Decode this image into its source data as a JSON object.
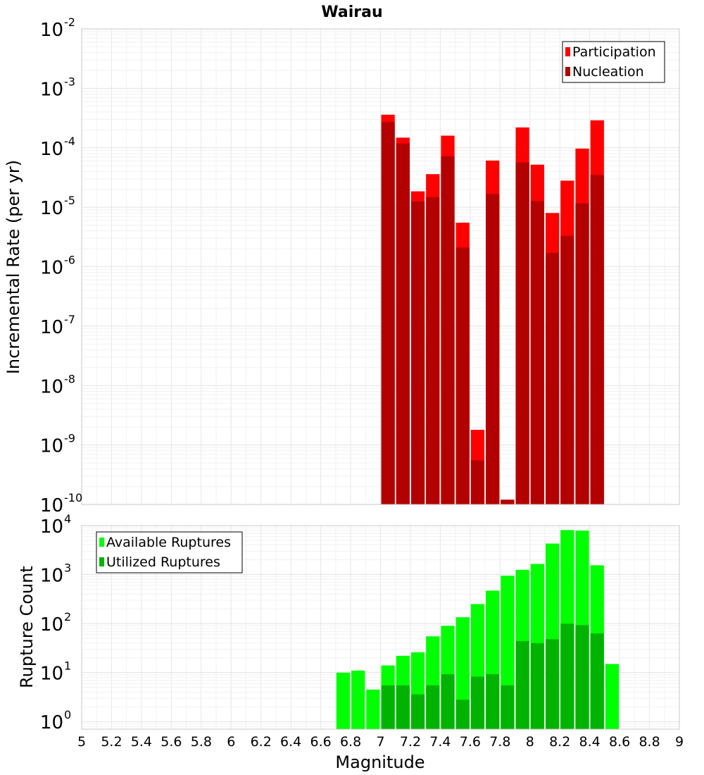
{
  "chart_data": [
    {
      "type": "bar",
      "title": "Wairau",
      "ylabel": "Incremental Rate (per yr)",
      "xlabel": "",
      "y_scale": "log",
      "xlim": [
        5,
        9
      ],
      "ylim": [
        1e-10,
        0.01
      ],
      "y_ticks": [
        {
          "base": "10",
          "exp": "-2",
          "value": 0.01
        },
        {
          "base": "10",
          "exp": "-3",
          "value": 0.001
        },
        {
          "base": "10",
          "exp": "-4",
          "value": 0.0001
        },
        {
          "base": "10",
          "exp": "-5",
          "value": 1e-05
        },
        {
          "base": "10",
          "exp": "-6",
          "value": 1e-06
        },
        {
          "base": "10",
          "exp": "-7",
          "value": 1e-07
        },
        {
          "base": "10",
          "exp": "-8",
          "value": 1e-08
        },
        {
          "base": "10",
          "exp": "-9",
          "value": 1e-09
        },
        {
          "base": "10",
          "exp": "-10",
          "value": 1e-10
        }
      ],
      "legend_position": "top-right",
      "x": [
        7.05,
        7.15,
        7.25,
        7.35,
        7.45,
        7.55,
        7.65,
        7.75,
        7.85,
        7.95,
        8.05,
        8.15,
        8.25,
        8.35,
        8.45
      ],
      "bar_width": 0.1,
      "series": [
        {
          "name": "Participation",
          "color": "#ff0000",
          "values": [
            0.00036,
            0.000148,
            1.85e-05,
            3.6e-05,
            0.00016,
            5.5e-06,
            1.8e-09,
            6.1e-05,
            1.2e-10,
            0.00022,
            5.2e-05,
            8e-06,
            2.8e-05,
            9.7e-05,
            0.00029
          ]
        },
        {
          "name": "Nucleation",
          "color": "#b30000",
          "values": [
            0.00027,
            0.000118,
            1.25e-05,
            1.48e-05,
            7.2e-05,
            2.1e-06,
            5.5e-10,
            1.67e-05,
            1.2e-10,
            5.65e-05,
            1.27e-05,
            1.7e-06,
            3.3e-06,
            1.16e-05,
            3.5e-05
          ]
        }
      ]
    },
    {
      "type": "bar",
      "title": "",
      "ylabel": "Rupture Count",
      "xlabel": "Magnitude",
      "y_scale": "log",
      "xlim": [
        5,
        9
      ],
      "ylim": [
        0.7,
        10000
      ],
      "y_ticks": [
        {
          "base": "10",
          "exp": "4",
          "value": 10000
        },
        {
          "base": "10",
          "exp": "3",
          "value": 1000
        },
        {
          "base": "10",
          "exp": "2",
          "value": 100
        },
        {
          "base": "10",
          "exp": "1",
          "value": 10
        },
        {
          "base": "10",
          "exp": "0",
          "value": 1
        }
      ],
      "x_ticks": [
        "5",
        "5.2",
        "5.4",
        "5.6",
        "5.8",
        "6",
        "6.2",
        "6.4",
        "6.6",
        "6.8",
        "7",
        "7.2",
        "7.4",
        "7.6",
        "7.8",
        "8",
        "8.2",
        "8.4",
        "8.6",
        "8.8",
        "9"
      ],
      "legend_position": "top-left",
      "x": [
        6.75,
        6.85,
        6.95,
        7.05,
        7.15,
        7.25,
        7.35,
        7.45,
        7.55,
        7.65,
        7.75,
        7.85,
        7.95,
        8.05,
        8.15,
        8.25,
        8.35,
        8.45,
        8.55
      ],
      "bar_width": 0.1,
      "series": [
        {
          "name": "Available Ruptures",
          "color": "#00ff00",
          "values": [
            10,
            11,
            4.5,
            14,
            22,
            26,
            55,
            90,
            135,
            250,
            470,
            950,
            1250,
            1650,
            4300,
            8100,
            7900,
            1550,
            15
          ]
        },
        {
          "name": "Utilized Ruptures",
          "color": "#00b300",
          "values": [
            null,
            null,
            null,
            5.5,
            5.5,
            3.6,
            5.5,
            9.3,
            2.8,
            8.3,
            9.3,
            5.5,
            44,
            40,
            48,
            100,
            93,
            63,
            null
          ]
        }
      ]
    }
  ]
}
